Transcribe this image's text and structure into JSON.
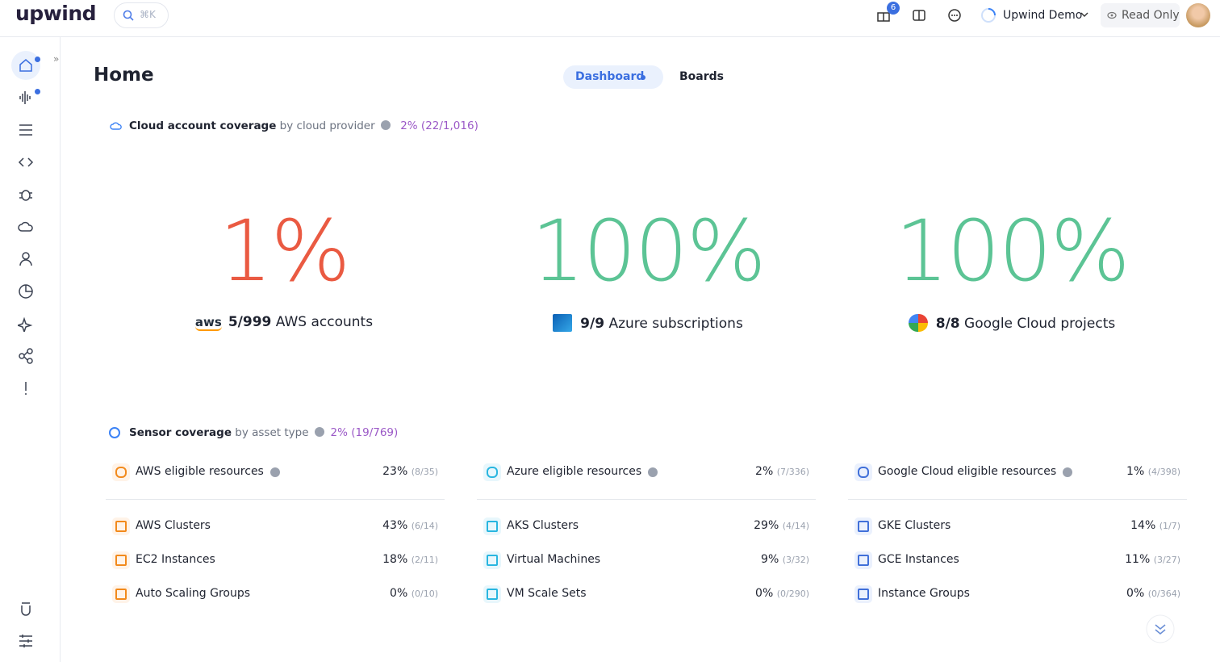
{
  "header": {
    "logo": "upwind",
    "search_shortcut": "⌘K",
    "notification_count": "6",
    "organization": "Upwind Demo",
    "mode": "Read Only"
  },
  "page": {
    "title": "Home",
    "tabs": [
      "Dashboard",
      "Boards"
    ]
  },
  "cloud_coverage": {
    "title": "Cloud account coverage",
    "subtitle": "by cloud provider",
    "summary": "2% (22/1,016)",
    "providers": [
      {
        "logo": "aws",
        "percent": "1%",
        "count": "5/999",
        "label": "AWS accounts",
        "color": "#ea5a42"
      },
      {
        "percent": "100%",
        "count": "9/9",
        "label": "Azure subscriptions",
        "color": "#5cc495"
      },
      {
        "percent": "100%",
        "count": "8/8",
        "label": "Google Cloud projects",
        "color": "#5cc495"
      }
    ]
  },
  "sensor_coverage": {
    "title": "Sensor coverage",
    "subtitle": "by asset type",
    "summary": "2% (19/769)",
    "columns": [
      {
        "header": {
          "label": "AWS eligible resources",
          "percent": "23%",
          "count": "(8/35)"
        },
        "rows": [
          {
            "label": "AWS Clusters",
            "percent": "43%",
            "count": "(6/14)"
          },
          {
            "label": "EC2 Instances",
            "percent": "18%",
            "count": "(2/11)"
          },
          {
            "label": "Auto Scaling Groups",
            "percent": "0%",
            "count": "(0/10)"
          }
        ]
      },
      {
        "header": {
          "label": "Azure eligible resources",
          "percent": "2%",
          "count": "(7/336)"
        },
        "rows": [
          {
            "label": "AKS Clusters",
            "percent": "29%",
            "count": "(4/14)"
          },
          {
            "label": "Virtual Machines",
            "percent": "9%",
            "count": "(3/32)"
          },
          {
            "label": "VM Scale Sets",
            "percent": "0%",
            "count": "(0/290)"
          }
        ]
      },
      {
        "header": {
          "label": "Google Cloud eligible resources",
          "percent": "1%",
          "count": "(4/398)"
        },
        "rows": [
          {
            "label": "GKE Clusters",
            "percent": "14%",
            "count": "(1/7)"
          },
          {
            "label": "GCE Instances",
            "percent": "11%",
            "count": "(3/27)"
          },
          {
            "label": "Instance Groups",
            "percent": "0%",
            "count": "(0/364)"
          }
        ]
      }
    ]
  }
}
